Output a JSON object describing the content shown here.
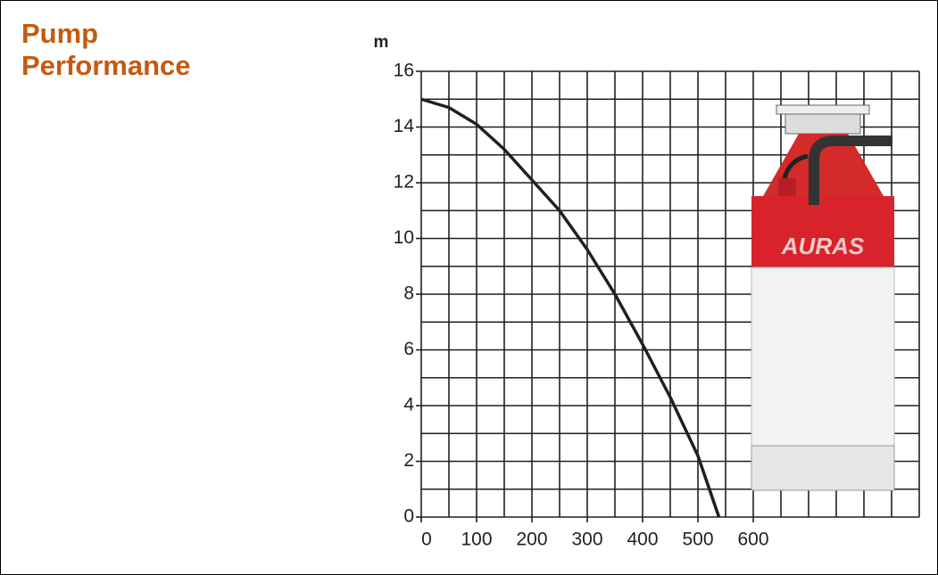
{
  "title": "Pump Performance",
  "chart_data": {
    "type": "line",
    "ylabel": "m",
    "x": [
      0,
      50,
      100,
      150,
      200,
      250,
      300,
      350,
      400,
      450,
      500,
      538
    ],
    "series": [
      {
        "color": "#231f20",
        "values": [
          15,
          14.7,
          14.1,
          13.2,
          12.1,
          11,
          9.6,
          8,
          6.2,
          4.3,
          2.2,
          0
        ]
      }
    ],
    "xlim": [
      0,
      900
    ],
    "ylim": [
      0,
      16
    ],
    "xticks": [
      0,
      100,
      200,
      300,
      400,
      500,
      600
    ],
    "yticks": [
      0,
      2,
      4,
      6,
      8,
      10,
      12,
      14,
      16
    ],
    "xgrid": [
      0,
      50,
      100,
      150,
      200,
      250,
      300,
      350,
      400,
      450,
      500,
      550,
      600,
      650,
      700,
      750,
      800,
      850,
      900
    ],
    "ygrid": [
      0,
      1,
      2,
      3,
      4,
      5,
      6,
      7,
      8,
      9,
      10,
      11,
      12,
      13,
      14,
      15,
      16
    ],
    "grid": true,
    "annotations": [
      "AURAS"
    ]
  }
}
